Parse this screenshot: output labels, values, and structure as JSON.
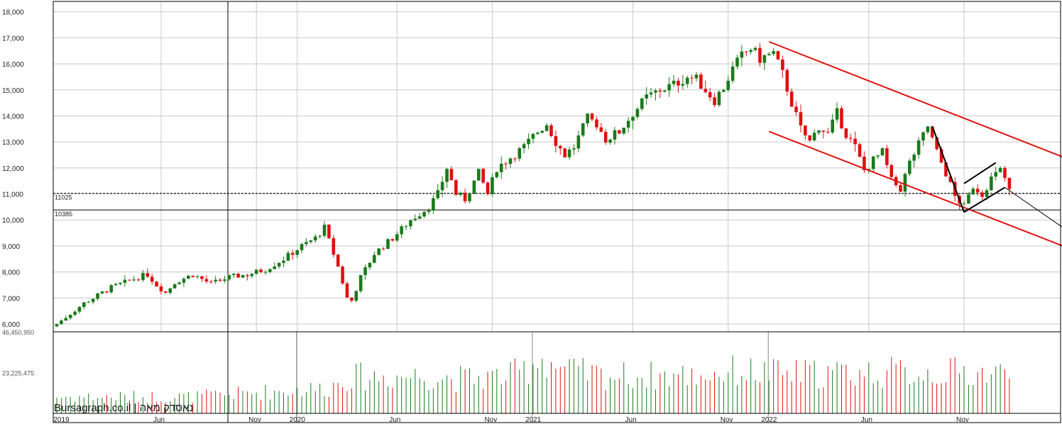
{
  "watermark": "Bursagraph.co.il | נאסדק מאה",
  "colors": {
    "up": "#1a7a1a",
    "down": "#e01010",
    "trend": "#e01010",
    "pattern": "#000000",
    "grid": "#c8c8c8"
  },
  "chart_data": {
    "type": "candlestick",
    "title": "",
    "xlabel": "",
    "ylabel": "",
    "ylim": [
      5700,
      18400
    ],
    "y_ticks": [
      "18,000",
      "17,000",
      "16,000",
      "15,000",
      "14,000",
      "13,000",
      "12,000",
      "11,000",
      "10,000",
      "9,000",
      "8,000",
      "7,000",
      "6,000"
    ],
    "y_tick_values": [
      18000,
      17000,
      16000,
      15000,
      14000,
      13000,
      12000,
      11000,
      10000,
      9000,
      8000,
      7000,
      6000
    ],
    "x_ticks": [
      {
        "label": "2019",
        "week": 1
      },
      {
        "label": "Jun",
        "week": 23
      },
      {
        "label": "Nov",
        "week": 44
      },
      {
        "label": "2020",
        "week": 53
      },
      {
        "label": "Jun",
        "week": 75
      },
      {
        "label": "Nov",
        "week": 96
      },
      {
        "label": "2021",
        "week": 105
      },
      {
        "label": "Jun",
        "week": 127
      },
      {
        "label": "Nov",
        "week": 148
      },
      {
        "label": "2022",
        "week": 157
      },
      {
        "label": "Jun",
        "week": 179
      },
      {
        "label": "Nov",
        "week": 200
      }
    ],
    "grid": true,
    "levels": [
      {
        "label": "11025",
        "value": 11025,
        "style": "dashed"
      },
      {
        "label": "10385",
        "value": 10385,
        "style": "solid"
      }
    ],
    "close_anchors": [
      [
        0,
        6000
      ],
      [
        6,
        6800
      ],
      [
        12,
        7400
      ],
      [
        18,
        7800
      ],
      [
        20,
        7900
      ],
      [
        22,
        7500
      ],
      [
        24,
        7200
      ],
      [
        26,
        7600
      ],
      [
        30,
        7900
      ],
      [
        34,
        7550
      ],
      [
        38,
        7800
      ],
      [
        42,
        7900
      ],
      [
        46,
        8100
      ],
      [
        50,
        8500
      ],
      [
        54,
        9000
      ],
      [
        57,
        9300
      ],
      [
        59,
        9700
      ],
      [
        60,
        9200
      ],
      [
        62,
        8200
      ],
      [
        64,
        7000
      ],
      [
        65,
        6900
      ],
      [
        67,
        7800
      ],
      [
        70,
        8700
      ],
      [
        74,
        9300
      ],
      [
        78,
        10000
      ],
      [
        82,
        10500
      ],
      [
        84,
        11000
      ],
      [
        86,
        12000
      ],
      [
        88,
        11000
      ],
      [
        90,
        10800
      ],
      [
        93,
        11800
      ],
      [
        95,
        11000
      ],
      [
        97,
        12000
      ],
      [
        100,
        12400
      ],
      [
        103,
        12800
      ],
      [
        106,
        13400
      ],
      [
        108,
        13700
      ],
      [
        110,
        13000
      ],
      [
        112,
        12500
      ],
      [
        114,
        12800
      ],
      [
        117,
        13900
      ],
      [
        119,
        13700
      ],
      [
        121,
        13100
      ],
      [
        124,
        13400
      ],
      [
        127,
        14100
      ],
      [
        130,
        14700
      ],
      [
        133,
        15000
      ],
      [
        136,
        15200
      ],
      [
        139,
        15500
      ],
      [
        141,
        15400
      ],
      [
        143,
        15000
      ],
      [
        145,
        14600
      ],
      [
        147,
        15100
      ],
      [
        149,
        15800
      ],
      [
        151,
        16300
      ],
      [
        153,
        16600
      ],
      [
        155,
        16200
      ],
      [
        158,
        16400
      ],
      [
        160,
        15600
      ],
      [
        162,
        14500
      ],
      [
        164,
        13500
      ],
      [
        166,
        13000
      ],
      [
        168,
        13600
      ],
      [
        170,
        13300
      ],
      [
        172,
        14100
      ],
      [
        174,
        13300
      ],
      [
        176,
        12800
      ],
      [
        178,
        11900
      ],
      [
        180,
        12300
      ],
      [
        182,
        12600
      ],
      [
        184,
        11500
      ],
      [
        186,
        11200
      ],
      [
        188,
        12200
      ],
      [
        190,
        12900
      ],
      [
        192,
        13600
      ],
      [
        194,
        12600
      ],
      [
        196,
        11800
      ],
      [
        198,
        10900
      ],
      [
        200,
        10500
      ],
      [
        202,
        11300
      ],
      [
        204,
        11000
      ],
      [
        206,
        11600
      ],
      [
        208,
        11900
      ],
      [
        209,
        11600
      ],
      [
        210,
        11100
      ]
    ],
    "trendlines": [
      {
        "name": "channel-upper",
        "points": [
          [
            157,
            16850
          ],
          [
            236,
            11450
          ]
        ]
      },
      {
        "name": "channel-lower",
        "points": [
          [
            157,
            13400
          ],
          [
            238,
            7900
          ]
        ]
      },
      {
        "name": "pattern-leg1",
        "points": [
          [
            193,
            13600
          ],
          [
            200,
            10300
          ]
        ]
      },
      {
        "name": "pattern-flag-top",
        "points": [
          [
            200,
            11400
          ],
          [
            207,
            12200
          ]
        ]
      },
      {
        "name": "pattern-flag-bottom",
        "points": [
          [
            200,
            10300
          ],
          [
            209,
            11250
          ]
        ]
      },
      {
        "name": "pattern-projection",
        "points": [
          [
            209,
            11250
          ],
          [
            236,
            8000
          ]
        ]
      }
    ],
    "volume": {
      "ylim": [
        0,
        46450950
      ],
      "y_ticks": [
        "46,450,950",
        "23,225,475"
      ],
      "y_tick_values": [
        46450950,
        23225475
      ],
      "level_anchors": [
        [
          0,
          10500000
        ],
        [
          30,
          10500000
        ],
        [
          50,
          14500000
        ],
        [
          60,
          16000000
        ],
        [
          64,
          23000000
        ],
        [
          80,
          24000000
        ],
        [
          90,
          22000000
        ],
        [
          100,
          24000000
        ],
        [
          104,
          29000000
        ],
        [
          106,
          36000000
        ],
        [
          108,
          34000000
        ],
        [
          112,
          27000000
        ],
        [
          120,
          24000000
        ],
        [
          140,
          24000000
        ],
        [
          150,
          27000000
        ],
        [
          160,
          25000000
        ],
        [
          180,
          26000000
        ],
        [
          200,
          26000000
        ],
        [
          210,
          25000000
        ]
      ]
    }
  }
}
